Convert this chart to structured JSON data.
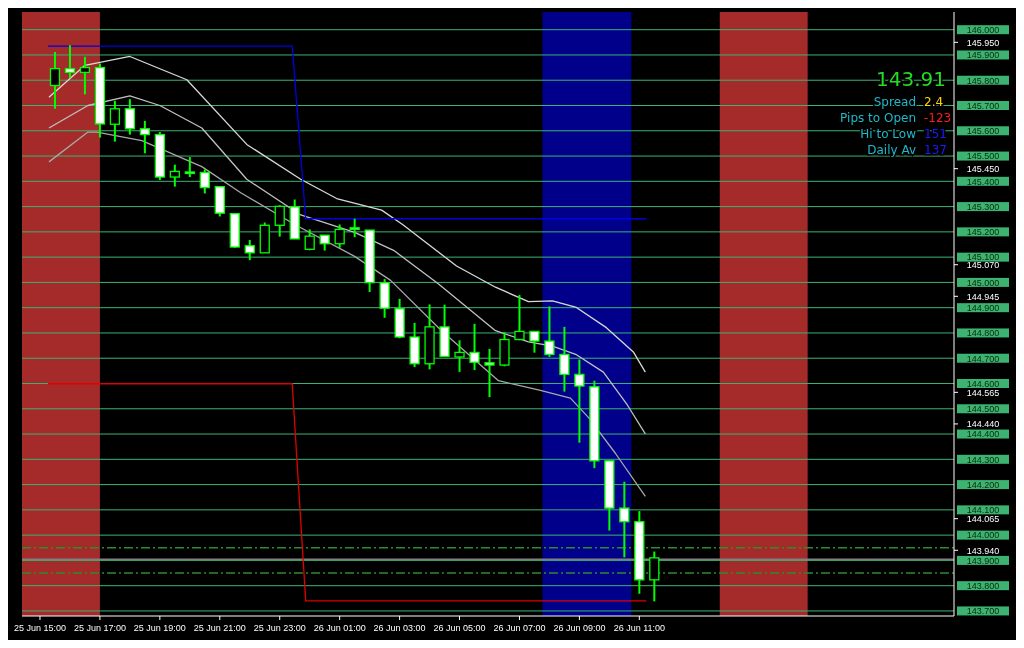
{
  "chart_data": {
    "type": "candlestick",
    "xlim": [
      "--06-25T14:24",
      "--06-26T21:30"
    ],
    "ylim": [
      143.68,
      146.07
    ],
    "y2lim": [
      143.68,
      146.07
    ],
    "xticks": [
      {
        "value": "--06-25T15:00",
        "label": "25 Jun 15:00"
      },
      {
        "value": "--06-25T17:00",
        "label": "25 Jun 17:00"
      },
      {
        "value": "--06-25T19:00",
        "label": "25 Jun 19:00"
      },
      {
        "value": "--06-25T21:00",
        "label": "25 Jun 21:00"
      },
      {
        "value": "--06-25T23:00",
        "label": "25 Jun 23:00"
      },
      {
        "value": "--06-26T01:00",
        "label": "26 Jun 01:00"
      },
      {
        "value": "--06-26T03:00",
        "label": "26 Jun 03:00"
      },
      {
        "value": "--06-26T05:00",
        "label": "26 Jun 05:00"
      },
      {
        "value": "--06-26T07:00",
        "label": "26 Jun 07:00"
      },
      {
        "value": "--06-26T09:00",
        "label": "26 Jun 09:00"
      },
      {
        "value": "--06-26T11:00",
        "label": "26 Jun 11:00"
      }
    ],
    "yticks": [
      {
        "value": 146.0,
        "label": "146.000"
      },
      {
        "value": 145.9,
        "label": "145.900"
      },
      {
        "value": 145.8,
        "label": "145.800"
      },
      {
        "value": 145.7,
        "label": "145.700"
      },
      {
        "value": 145.6,
        "label": "145.600"
      },
      {
        "value": 145.5,
        "label": "145.500"
      },
      {
        "value": 145.4,
        "label": "145.400"
      },
      {
        "value": 145.3,
        "label": "145.300"
      },
      {
        "value": 145.2,
        "label": "145.200"
      },
      {
        "value": 145.1,
        "label": "145.100"
      },
      {
        "value": 145.0,
        "label": "145.000"
      },
      {
        "value": 144.9,
        "label": "144.900"
      },
      {
        "value": 144.8,
        "label": "144.800"
      },
      {
        "value": 144.7,
        "label": "144.700"
      },
      {
        "value": 144.6,
        "label": "144.600"
      },
      {
        "value": 144.5,
        "label": "144.500"
      },
      {
        "value": 144.4,
        "label": "144.400"
      },
      {
        "value": 144.3,
        "label": "144.300"
      },
      {
        "value": 144.2,
        "label": "144.200"
      },
      {
        "value": 144.1,
        "label": "144.100"
      },
      {
        "value": 144.0,
        "label": "144.000"
      },
      {
        "value": 143.9,
        "label": "143.900"
      },
      {
        "value": 143.8,
        "label": "143.800"
      },
      {
        "value": 143.7,
        "label": "143.700"
      }
    ],
    "y2ticks": [
      {
        "value": 145.95,
        "label": "145.950"
      },
      {
        "value": 145.45,
        "label": "145.450"
      },
      {
        "value": 145.07,
        "label": "145.070"
      },
      {
        "value": 144.945,
        "label": "144.945"
      },
      {
        "value": 144.565,
        "label": "144.565"
      },
      {
        "value": 144.44,
        "label": "144.440"
      },
      {
        "value": 144.065,
        "label": "144.065"
      },
      {
        "value": 143.94,
        "label": "143.940"
      }
    ],
    "grid": "y",
    "x": [
      "--06-25T15:30",
      "--06-25T16:00",
      "--06-25T16:30",
      "--06-25T17:00",
      "--06-25T17:30",
      "--06-25T18:00",
      "--06-25T18:30",
      "--06-25T19:00",
      "--06-25T19:30",
      "--06-25T20:00",
      "--06-25T20:30",
      "--06-25T21:00",
      "--06-25T21:30",
      "--06-25T22:00",
      "--06-25T22:30",
      "--06-25T23:00",
      "--06-25T23:30",
      "--06-26T00:00",
      "--06-26T00:30",
      "--06-26T01:00",
      "--06-26T01:30",
      "--06-26T02:00",
      "--06-26T02:30",
      "--06-26T03:00",
      "--06-26T03:30",
      "--06-26T04:00",
      "--06-26T04:30",
      "--06-26T05:00",
      "--06-26T05:30",
      "--06-26T06:00",
      "--06-26T06:30",
      "--06-26T07:00",
      "--06-26T07:30",
      "--06-26T08:00",
      "--06-26T08:30",
      "--06-26T09:00",
      "--06-26T09:30",
      "--06-26T10:00",
      "--06-26T10:30",
      "--06-26T11:00",
      "--06-26T11:30"
    ],
    "ohlc": [
      [
        145.779,
        145.912,
        145.687,
        145.846
      ],
      [
        145.846,
        145.939,
        145.809,
        145.831
      ],
      [
        145.831,
        145.893,
        145.744,
        145.85
      ],
      [
        145.85,
        145.866,
        145.573,
        145.627
      ],
      [
        145.626,
        145.719,
        145.557,
        145.687
      ],
      [
        145.687,
        145.725,
        145.585,
        145.608
      ],
      [
        145.608,
        145.639,
        145.511,
        145.585
      ],
      [
        145.585,
        145.595,
        145.405,
        145.417
      ],
      [
        145.417,
        145.466,
        145.379,
        145.439
      ],
      [
        145.437,
        145.496,
        145.417,
        145.433
      ],
      [
        145.435,
        145.447,
        145.352,
        145.375
      ],
      [
        145.379,
        145.379,
        145.261,
        145.274
      ],
      [
        145.272,
        145.272,
        145.137,
        145.14
      ],
      [
        145.145,
        145.168,
        145.088,
        145.117
      ],
      [
        145.117,
        145.237,
        145.117,
        145.226
      ],
      [
        145.226,
        145.305,
        145.181,
        145.301
      ],
      [
        145.299,
        145.328,
        145.172,
        145.172
      ],
      [
        145.131,
        145.21,
        145.127,
        145.183
      ],
      [
        145.187,
        145.187,
        145.126,
        145.153
      ],
      [
        145.153,
        145.229,
        145.137,
        145.21
      ],
      [
        145.216,
        145.252,
        145.179,
        145.212
      ],
      [
        145.207,
        145.207,
        144.962,
        144.999
      ],
      [
        144.999,
        145.013,
        144.86,
        144.898
      ],
      [
        144.896,
        144.935,
        144.779,
        144.784
      ],
      [
        144.784,
        144.84,
        144.665,
        144.678
      ],
      [
        144.678,
        144.913,
        144.656,
        144.824
      ],
      [
        144.824,
        144.912,
        144.707,
        144.707
      ],
      [
        144.705,
        144.771,
        144.646,
        144.723
      ],
      [
        144.723,
        144.836,
        144.653,
        144.684
      ],
      [
        144.682,
        144.737,
        144.546,
        144.673
      ],
      [
        144.673,
        144.803,
        144.668,
        144.774
      ],
      [
        144.774,
        144.95,
        144.771,
        144.806
      ],
      [
        144.806,
        144.806,
        144.722,
        144.768
      ],
      [
        144.768,
        144.905,
        144.705,
        144.715
      ],
      [
        144.715,
        144.824,
        144.568,
        144.636
      ],
      [
        144.636,
        144.695,
        144.366,
        144.59
      ],
      [
        144.587,
        144.611,
        144.265,
        144.294
      ],
      [
        144.294,
        144.294,
        144.018,
        144.107
      ],
      [
        144.107,
        144.211,
        143.912,
        144.053
      ],
      [
        144.053,
        144.095,
        143.768,
        143.823
      ],
      [
        143.823,
        143.935,
        143.738,
        143.91
      ]
    ],
    "series": [
      {
        "type": "line",
        "color": "#d8d8d8",
        "x": [
          "--06-25T15:18",
          "--06-25T16:30",
          "--06-25T18:00",
          "--06-25T19:54",
          "--06-25T21:54",
          "--06-25T23:42",
          "--06-26T00:54",
          "--06-26T02:24",
          "--06-26T03:06",
          "--06-26T04:54",
          "--06-26T06:12",
          "--06-26T07:18",
          "--06-26T08:06",
          "--06-26T08:54",
          "--06-26T09:54",
          "--06-26T10:48",
          "--06-26T11:12"
        ],
        "values": [
          145.733,
          145.859,
          145.894,
          145.802,
          145.546,
          145.408,
          145.332,
          145.286,
          145.229,
          145.065,
          144.981,
          144.924,
          144.927,
          144.901,
          144.821,
          144.725,
          144.645
        ]
      },
      {
        "type": "line",
        "color": "#c0c0c0",
        "x": [
          "--06-25T15:18",
          "--06-25T16:36",
          "--06-25T18:00",
          "--06-25T19:00",
          "--06-25T20:24",
          "--06-25T21:54",
          "--06-25T23:42",
          "--06-26T01:30",
          "--06-26T02:48",
          "--06-26T04:18",
          "--06-26T06:12",
          "--06-26T07:18",
          "--06-26T08:06",
          "--06-26T08:54",
          "--06-26T09:48",
          "--06-26T10:36",
          "--06-26T11:12"
        ],
        "values": [
          145.611,
          145.7,
          145.738,
          145.7,
          145.611,
          145.408,
          145.267,
          145.198,
          145.127,
          144.994,
          144.809,
          144.765,
          144.748,
          144.714,
          144.645,
          144.515,
          144.401
        ]
      },
      {
        "type": "line",
        "color": "#a8a8a8",
        "x": [
          "--06-25T15:18",
          "--06-25T16:36",
          "--06-25T16:54",
          "--06-25T18:24",
          "--06-25T20:24",
          "--06-25T21:42",
          "--06-25T23:30",
          "--06-26T01:30",
          "--06-26T02:42",
          "--06-26T04:24",
          "--06-26T06:18",
          "--06-26T07:42",
          "--06-26T08:42",
          "--06-26T09:18",
          "--06-26T10:12",
          "--06-26T11:12"
        ],
        "values": [
          145.477,
          145.595,
          145.595,
          145.561,
          145.458,
          145.355,
          145.229,
          145.103,
          145.008,
          144.809,
          144.611,
          144.573,
          144.542,
          144.466,
          144.324,
          144.153
        ]
      },
      {
        "type": "line",
        "color": "#0000e0",
        "x": [
          "--06-25T15:16",
          "--06-25T23:25",
          "--06-25T23:52",
          "--06-26T11:14"
        ],
        "values": [
          145.935,
          145.935,
          145.252,
          145.252
        ]
      },
      {
        "type": "line",
        "color": "#e00000",
        "x": [
          "--06-25T15:16",
          "--06-25T23:25",
          "--06-25T23:52",
          "--06-26T11:14"
        ],
        "values": [
          144.599,
          144.599,
          143.74,
          143.74
        ]
      }
    ],
    "bands": [
      {
        "axis": "x",
        "from": "--06-25T14:24",
        "to": "--06-25T17:00",
        "color": "#a52a2a"
      },
      {
        "axis": "x",
        "from": "--06-26T07:46",
        "to": "--06-26T10:44",
        "color": "#00008b"
      },
      {
        "axis": "x",
        "from": "--06-26T13:41",
        "to": "--06-26T16:37",
        "color": "#a52a2a"
      }
    ],
    "ref_lines": [
      {
        "axis": "y",
        "value": 143.95,
        "color": "#2e8b2e",
        "line_style": "dashed"
      },
      {
        "axis": "y",
        "value": 143.85,
        "color": "#2e8b2e",
        "line_style": "dashed"
      },
      {
        "axis": "y",
        "value": 143.905,
        "color": "#808080",
        "line_style": "solid"
      }
    ],
    "annotations": [
      "143.91",
      "Spread",
      "2.4",
      "Pips to Open",
      "-123",
      "Hi to Low",
      "151",
      "Daily Av",
      "137"
    ]
  }
}
